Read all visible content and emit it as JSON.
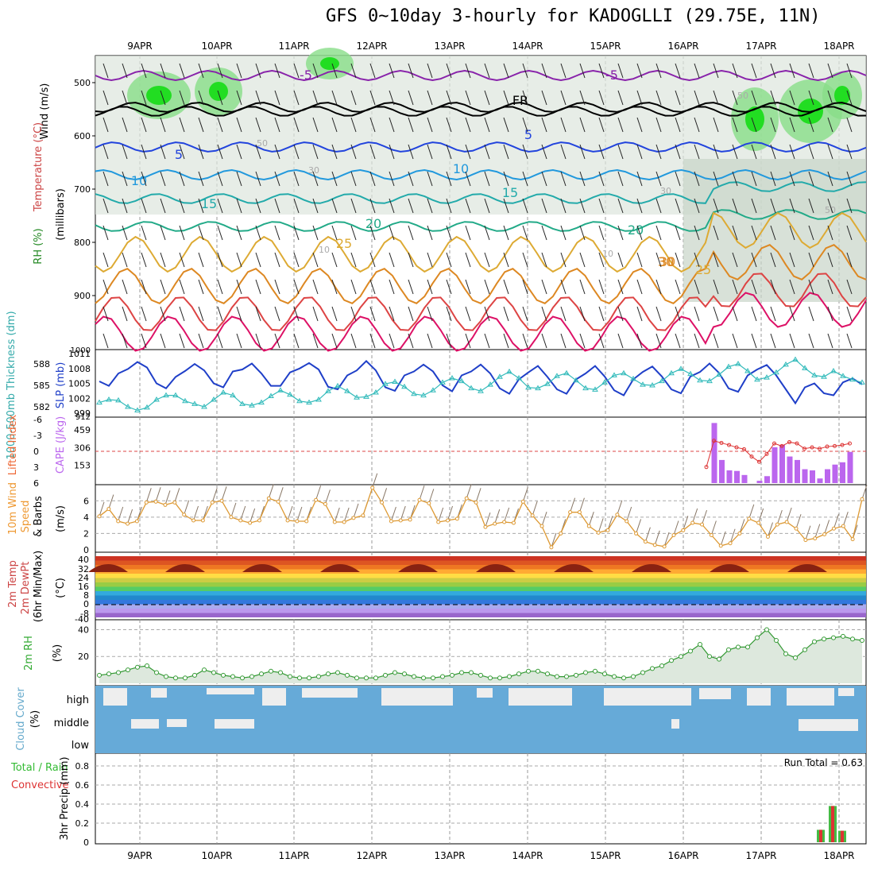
{
  "title": "GFS 0~10day 3-hourly for KADOGLLI (29.75E, 11N)",
  "dates": [
    "9APR",
    "10APR",
    "11APR",
    "12APR",
    "13APR",
    "14APR",
    "15APR",
    "16APR",
    "17APR",
    "18APR"
  ],
  "panels": {
    "upper": {
      "ylabel_wind": "Wind (m/s)",
      "ylabel_temp": "Temperature (°C)",
      "ylabel_rh": "RH (%)",
      "ylabel_units": "(millibars)",
      "yticks": [
        "500",
        "600",
        "700",
        "800",
        "900"
      ],
      "contour_labels": [
        "-5",
        "-5",
        "FR",
        "5",
        "5",
        "10",
        "10",
        "15",
        "15",
        "20",
        "20",
        "25",
        "25",
        "30",
        "30",
        "50",
        "50",
        "50",
        "30",
        "30",
        "10",
        "10"
      ]
    },
    "slp": {
      "ylabel_left": "1000-500mb Thickness (dm)",
      "ylabel_right": "SLP (mb)",
      "left_ticks": [
        "588",
        "585",
        "582"
      ],
      "right_ticks": [
        "1011",
        "1008",
        "1005",
        "1002",
        "999"
      ],
      "top_tick": "1000",
      "bottom_tick": "912"
    },
    "cape": {
      "ylabel_left": "Lifted Index",
      "ylabel_right": "CAPE (J/kg)",
      "left_ticks": [
        "-6",
        "-3",
        "0",
        "3",
        "6"
      ],
      "right_ticks": [
        "459",
        "306",
        "153"
      ]
    },
    "wind10": {
      "ylabel1": "10m Wind",
      "ylabel2": "Speed",
      "ylabel3": "& Barbs",
      "units": "(m/s)",
      "yticks": [
        "6",
        "4",
        "2",
        "0"
      ]
    },
    "temp2m": {
      "ylabel1": "2m Temp",
      "ylabel2": "2m DewPt",
      "ylabel3": "(6hr Min/Max)",
      "units": "(°C)",
      "yticks": [
        "40",
        "32",
        "24",
        "16",
        "8",
        "0",
        "-8",
        "-40"
      ]
    },
    "rh2m": {
      "ylabel": "2m RH",
      "units": "(%)",
      "yticks": [
        "40",
        "20"
      ]
    },
    "cloud": {
      "ylabel": "Cloud Cover",
      "units": "(%)",
      "levels": [
        "high",
        "middle",
        "low"
      ]
    },
    "precip": {
      "ylabel1": "Total / Rain",
      "ylabel2": "Convective",
      "ylabel3": "3hr Precip (mm)",
      "yticks": [
        "0.8",
        "0.6",
        "0.4",
        "0.2",
        "0"
      ],
      "run_total": "Run Total = 0.63"
    }
  },
  "colors": {
    "slp": "#1f3fc8",
    "thickness": "#33bbbb",
    "cape_bar": "#bb66ee",
    "lifted": "#dd3333",
    "wind_speed": "#dd9933",
    "rh": "#339933",
    "cloud": "#66aad8",
    "precip_total": "#44bb44",
    "precip_conv": "#dd3333"
  },
  "chart_data": [
    {
      "type": "line",
      "title": "SLP (mb)",
      "xlabel": "",
      "ylabel": "SLP (mb)",
      "ylim": [
        999,
        1011
      ],
      "x": [
        "9APR",
        "9APR",
        "9APR",
        "9APR",
        "9APR",
        "9APR",
        "9APR",
        "9APR",
        "10APR",
        "10APR",
        "10APR",
        "10APR",
        "10APR",
        "10APR",
        "10APR",
        "10APR",
        "11APR",
        "11APR",
        "11APR",
        "11APR",
        "11APR",
        "11APR",
        "11APR",
        "11APR",
        "12APR",
        "12APR",
        "12APR",
        "12APR",
        "12APR",
        "12APR",
        "12APR",
        "12APR",
        "13APR",
        "13APR",
        "13APR",
        "13APR",
        "13APR",
        "13APR",
        "13APR",
        "13APR",
        "14APR",
        "14APR",
        "14APR",
        "14APR",
        "14APR",
        "14APR",
        "14APR",
        "14APR",
        "15APR",
        "15APR",
        "15APR",
        "15APR",
        "15APR",
        "15APR",
        "15APR",
        "15APR",
        "16APR",
        "16APR",
        "16APR",
        "16APR",
        "16APR",
        "16APR",
        "16APR",
        "16APR",
        "17APR",
        "17APR",
        "17APR",
        "17APR",
        "17APR",
        "17APR",
        "17APR",
        "17APR",
        "18APR",
        "18APR",
        "18APR",
        "18APR",
        "18APR",
        "18APR",
        "18APR",
        "18APR",
        "18APR"
      ],
      "values": [
        1005.4,
        1004.5,
        1007.0,
        1007.9,
        1009.3,
        1008.2,
        1005.0,
        1004.0,
        1006.3,
        1007.5,
        1008.9,
        1007.6,
        1005.0,
        1004.2,
        1007.4,
        1007.8,
        1009.0,
        1007.0,
        1004.5,
        1004.5,
        1007.2,
        1008.0,
        1009.1,
        1007.8,
        1004.3,
        1003.8,
        1006.6,
        1007.6,
        1009.5,
        1007.6,
        1004.2,
        1003.5,
        1006.6,
        1007.4,
        1008.8,
        1007.4,
        1004.6,
        1003.4,
        1006.6,
        1007.4,
        1008.8,
        1007.0,
        1004.0,
        1002.9,
        1005.8,
        1007.2,
        1008.5,
        1006.3,
        1003.8,
        1002.9,
        1005.8,
        1007.0,
        1008.5,
        1006.4,
        1003.6,
        1002.6,
        1005.8,
        1007.3,
        1008.4,
        1006.4,
        1003.8,
        1003.0,
        1006.4,
        1007.3,
        1009.0,
        1007.1,
        1004.0,
        1003.3,
        1006.6,
        1007.8,
        1008.7,
        1006.6,
        1003.8,
        1001.0,
        1004.2,
        1005.0,
        1003.0,
        1002.6,
        1005.2,
        1006.0,
        1004.8
      ],
      "series": [
        {
          "name": "SLP (mb)",
          "values": [
            1005.4,
            1004.5,
            1007.0,
            1007.9,
            1009.3,
            1008.2,
            1005.0,
            1004.0,
            1006.3,
            1007.5,
            1008.9,
            1007.6,
            1005.0,
            1004.2,
            1007.4,
            1007.8,
            1009.0,
            1007.0,
            1004.5,
            1004.5,
            1007.2,
            1008.0,
            1009.1,
            1007.8,
            1004.3,
            1003.8,
            1006.6,
            1007.6,
            1009.5,
            1007.6,
            1004.2,
            1003.5,
            1006.6,
            1007.4,
            1008.8,
            1007.4,
            1004.6,
            1003.4,
            1006.6,
            1007.4,
            1008.8,
            1007.0,
            1004.0,
            1002.9,
            1005.8,
            1007.2,
            1008.5,
            1006.3,
            1003.8,
            1002.9,
            1005.8,
            1007.0,
            1008.5,
            1006.4,
            1003.6,
            1002.6,
            1005.8,
            1007.3,
            1008.4,
            1006.4,
            1003.8,
            1003.0,
            1006.4,
            1007.3,
            1009.0,
            1007.1,
            1004.0,
            1003.3,
            1006.6,
            1007.8,
            1008.7,
            1006.6,
            1003.8,
            1001.0,
            1004.2,
            1005.0,
            1003.0,
            1002.6,
            1005.2,
            1006.0,
            1004.8
          ]
        },
        {
          "name": "1000-500mb Thickness (dm)",
          "values": [
            582.6,
            583.0,
            582.9,
            582.0,
            581.5,
            581.9,
            583.0,
            583.6,
            583.6,
            582.8,
            582.4,
            582.0,
            583.0,
            584.0,
            583.6,
            582.4,
            582.2,
            582.6,
            583.5,
            584.3,
            583.7,
            582.8,
            582.6,
            583.0,
            584.2,
            584.9,
            584.2,
            583.3,
            583.4,
            584.0,
            585.2,
            585.5,
            584.8,
            583.8,
            583.6,
            584.3,
            585.4,
            586.0,
            585.6,
            584.6,
            584.2,
            585.1,
            586.2,
            586.9,
            586.0,
            584.7,
            584.6,
            585.2,
            586.3,
            586.7,
            585.7,
            584.6,
            584.4,
            585.4,
            586.4,
            586.7,
            585.9,
            585.1,
            585.0,
            585.6,
            586.7,
            587.3,
            586.6,
            585.7,
            585.6,
            586.5,
            587.6,
            588.0,
            587.0,
            585.8,
            586.1,
            586.8,
            587.9,
            588.6,
            587.4,
            586.4,
            586.2,
            587.0,
            586.3,
            585.8,
            585.4
          ]
        }
      ]
    },
    {
      "type": "bar",
      "title": "CAPE (J/kg)",
      "xlabel": "",
      "ylabel": "CAPE (J/kg)",
      "ylim": [
        0,
        550
      ],
      "categories": [
        "16APR 06",
        "16APR 09",
        "16APR 12",
        "16APR 15",
        "16APR 18",
        "16APR 21",
        "17APR 00",
        "17APR 03",
        "17APR 06",
        "17APR 09",
        "17APR 12",
        "17APR 15",
        "17APR 18",
        "17APR 21",
        "18APR 00",
        "18APR 03",
        "18APR 06",
        "18APR 09",
        "18APR 12",
        "18APR 15"
      ],
      "values": [
        0,
        520,
        200,
        110,
        105,
        70,
        0,
        20,
        60,
        310,
        330,
        230,
        200,
        120,
        110,
        40,
        120,
        160,
        180,
        270
      ]
    },
    {
      "type": "line",
      "title": "10m Wind Speed (m/s)",
      "xlabel": "",
      "ylabel": "(m/s)",
      "ylim": [
        0,
        7
      ],
      "values": [
        4.1,
        5.0,
        3.5,
        3.2,
        3.5,
        5.8,
        5.9,
        5.5,
        5.8,
        4.3,
        3.6,
        3.6,
        5.8,
        6.0,
        4.0,
        3.6,
        3.3,
        3.6,
        6.3,
        5.9,
        3.6,
        3.5,
        3.5,
        6.1,
        5.6,
        3.4,
        3.4,
        3.9,
        4.2,
        7.6,
        5.8,
        3.5,
        3.6,
        3.7,
        6.1,
        5.7,
        3.4,
        3.6,
        3.8,
        6.3,
        5.8,
        2.8,
        3.2,
        3.4,
        3.3,
        5.9,
        4.2,
        2.9,
        0.3,
        2.0,
        4.6,
        4.6,
        2.9,
        2.1,
        2.4,
        4.3,
        3.5,
        2.0,
        1.0,
        0.6,
        0.4,
        1.8,
        2.4,
        3.3,
        3.1,
        1.8,
        0.5,
        0.8,
        2.0,
        3.8,
        3.3,
        1.6,
        3.1,
        3.4,
        2.6,
        1.2,
        1.4,
        1.9,
        2.6,
        2.9,
        1.3,
        6.2
      ]
    },
    {
      "type": "line",
      "title": "2m RH (%)",
      "xlabel": "",
      "ylabel": "(%)",
      "ylim": [
        0,
        45
      ],
      "values": [
        6,
        7,
        8,
        10,
        12,
        13,
        8,
        5,
        4,
        4,
        6,
        10,
        8,
        6,
        5,
        4,
        5,
        7,
        9,
        8,
        5,
        4,
        4,
        5,
        7,
        8,
        6,
        4,
        4,
        4,
        6,
        8,
        7,
        5,
        4,
        4,
        5,
        6,
        8,
        8,
        6,
        4,
        4,
        5,
        7,
        9,
        9,
        7,
        5,
        5,
        6,
        8,
        9,
        7,
        5,
        4,
        5,
        8,
        11,
        13,
        17,
        20,
        24,
        29,
        20,
        18,
        25,
        27,
        27,
        34,
        40,
        32,
        22,
        19,
        25,
        31,
        33,
        34,
        35,
        33,
        32
      ]
    },
    {
      "type": "bar",
      "title": "3hr Precip (mm)",
      "xlabel": "",
      "ylabel": "3hr Precip (mm)",
      "ylim": [
        0,
        0.9
      ],
      "categories": [
        "17APR 18",
        "17APR 21",
        "18APR 00"
      ],
      "series": [
        {
          "name": "Total / Rain",
          "values": [
            0.13,
            0.38,
            0.12
          ]
        },
        {
          "name": "Convective",
          "values": [
            0.13,
            0.38,
            0.12
          ]
        }
      ]
    }
  ]
}
